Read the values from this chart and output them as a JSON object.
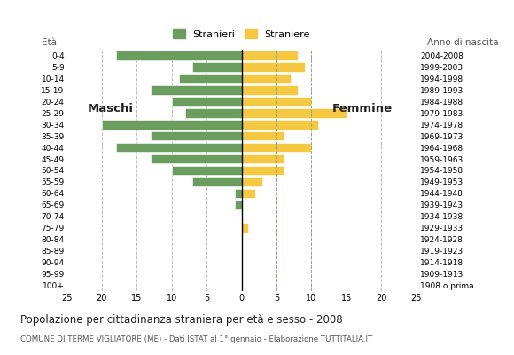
{
  "age_groups": [
    "100+",
    "95-99",
    "90-94",
    "85-89",
    "80-84",
    "75-79",
    "70-74",
    "65-69",
    "60-64",
    "55-59",
    "50-54",
    "45-49",
    "40-44",
    "35-39",
    "30-34",
    "25-29",
    "20-24",
    "15-19",
    "10-14",
    "5-9",
    "0-4"
  ],
  "birth_years": [
    "1908 o prima",
    "1909-1913",
    "1914-1918",
    "1919-1923",
    "1924-1928",
    "1929-1933",
    "1934-1938",
    "1939-1943",
    "1944-1948",
    "1949-1953",
    "1954-1958",
    "1959-1963",
    "1964-1968",
    "1969-1973",
    "1974-1978",
    "1979-1983",
    "1984-1988",
    "1989-1993",
    "1994-1998",
    "1999-2003",
    "2004-2008"
  ],
  "males": [
    0,
    0,
    0,
    0,
    0,
    0,
    0,
    1,
    1,
    7,
    10,
    13,
    18,
    13,
    20,
    8,
    10,
    13,
    9,
    7,
    18
  ],
  "females": [
    0,
    0,
    0,
    0,
    0,
    1,
    0,
    0,
    2,
    3,
    6,
    6,
    10,
    6,
    11,
    15,
    10,
    8,
    7,
    9,
    8
  ],
  "male_color": "#6b9e5e",
  "female_color": "#f5c842",
  "grid_color": "#bbbbbb",
  "spine_color": "#cccccc",
  "title": "Popolazione per cittadinanza straniera per età e sesso - 2008",
  "subtitle": "COMUNE DI TERME VIGLIATORE (ME) - Dati ISTAT al 1° gennaio - Elaborazione TUTTITALIA.IT",
  "label_maschi": "Maschi",
  "label_femmine": "Femmine",
  "legend_stranieri": "Stranieri",
  "legend_straniere": "Straniere",
  "anno_nascita": "Anno di nascita",
  "eta_label": "Età",
  "xlim": 25,
  "background": "#ffffff"
}
